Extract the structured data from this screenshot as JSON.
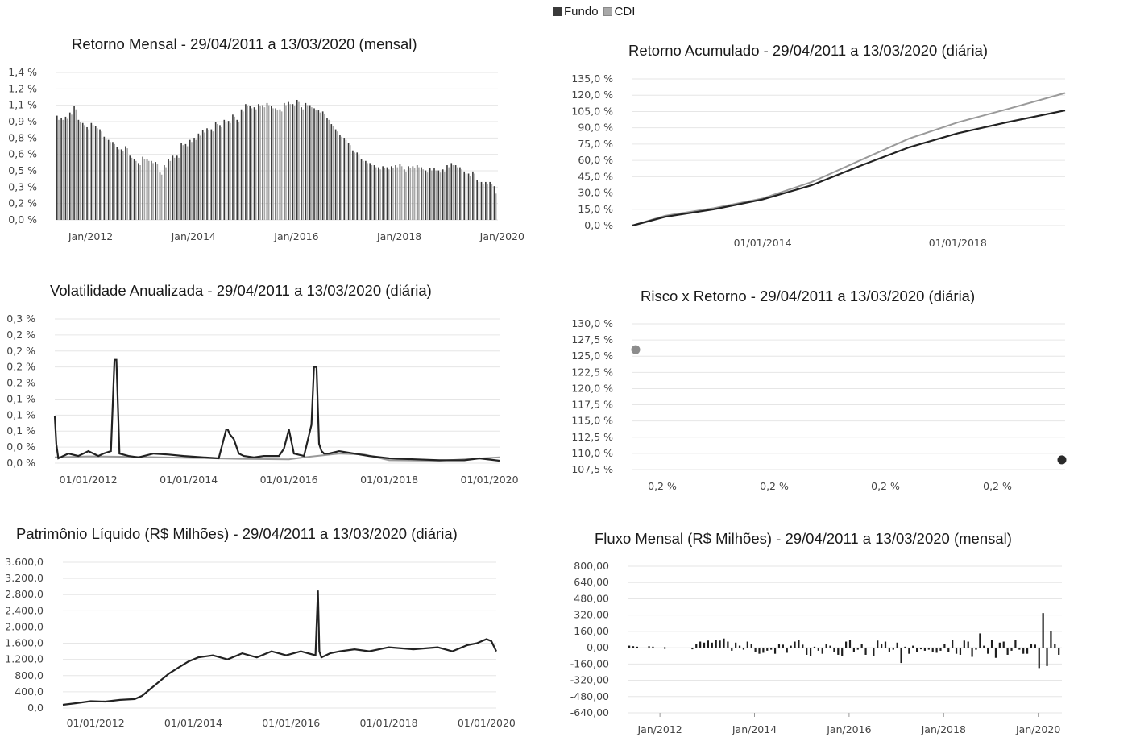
{
  "legend": {
    "fundo_label": "Fundo",
    "cdi_label": "CDI",
    "colors": {
      "fundo": "#3a3a3a",
      "cdi": "#a8a8a8"
    }
  },
  "chart_data": [
    {
      "id": "retorno-mensal",
      "type": "bar",
      "title": "Retorno Mensal - 29/04/2011 a 13/03/2020 (mensal)",
      "xlabel": "",
      "ylabel": "",
      "y_ticks": [
        "0,0 %",
        "0,2 %",
        "0,3 %",
        "0,5 %",
        "0,6 %",
        "0,8 %",
        "0,9 %",
        "1,1 %",
        "1,2 %",
        "1,4 %"
      ],
      "ylim": [
        0,
        1.4
      ],
      "x_ticks": [
        "Jan/2012",
        "Jan/2014",
        "Jan/2016",
        "Jan/2018",
        "Jan/2020"
      ],
      "x_tick_months": [
        8,
        32,
        56,
        80,
        104
      ],
      "series": [
        {
          "name": "Fundo",
          "color": "#3a3a3a",
          "values": [
            0.99,
            0.97,
            0.98,
            1.02,
            1.08,
            0.95,
            0.92,
            0.88,
            0.92,
            0.89,
            0.86,
            0.79,
            0.76,
            0.74,
            0.69,
            0.67,
            0.7,
            0.61,
            0.58,
            0.54,
            0.6,
            0.58,
            0.56,
            0.55,
            0.45,
            0.52,
            0.58,
            0.61,
            0.61,
            0.73,
            0.72,
            0.76,
            0.78,
            0.82,
            0.85,
            0.87,
            0.86,
            0.93,
            0.9,
            0.95,
            0.94,
            1.0,
            0.95,
            1.05,
            1.1,
            1.08,
            1.07,
            1.1,
            1.09,
            1.11,
            1.08,
            1.06,
            1.05,
            1.11,
            1.12,
            1.1,
            1.14,
            1.07,
            1.11,
            1.09,
            1.06,
            1.04,
            1.03,
            0.97,
            0.91,
            0.86,
            0.81,
            0.78,
            0.73,
            0.66,
            0.64,
            0.58,
            0.56,
            0.54,
            0.52,
            0.5,
            0.51,
            0.5,
            0.51,
            0.52,
            0.53,
            0.48,
            0.51,
            0.51,
            0.52,
            0.5,
            0.47,
            0.49,
            0.49,
            0.47,
            0.48,
            0.52,
            0.54,
            0.52,
            0.5,
            0.46,
            0.44,
            0.46,
            0.38,
            0.36,
            0.36,
            0.36,
            0.32
          ]
        },
        {
          "name": "CDI",
          "color": "#a8a8a8",
          "values": [
            0.95,
            0.95,
            0.96,
            1.0,
            1.05,
            0.93,
            0.9,
            0.86,
            0.9,
            0.87,
            0.84,
            0.77,
            0.74,
            0.72,
            0.67,
            0.65,
            0.68,
            0.59,
            0.56,
            0.52,
            0.58,
            0.56,
            0.54,
            0.53,
            0.43,
            0.5,
            0.56,
            0.59,
            0.59,
            0.71,
            0.7,
            0.74,
            0.76,
            0.8,
            0.83,
            0.85,
            0.84,
            0.91,
            0.88,
            0.93,
            0.92,
            0.98,
            0.93,
            1.03,
            1.08,
            1.06,
            1.05,
            1.08,
            1.07,
            1.09,
            1.06,
            1.04,
            1.03,
            1.09,
            1.1,
            1.08,
            1.12,
            1.05,
            1.09,
            1.07,
            1.04,
            1.02,
            1.01,
            0.95,
            0.89,
            0.84,
            0.79,
            0.76,
            0.71,
            0.64,
            0.62,
            0.56,
            0.54,
            0.52,
            0.5,
            0.48,
            0.49,
            0.48,
            0.49,
            0.5,
            0.51,
            0.46,
            0.49,
            0.49,
            0.5,
            0.48,
            0.45,
            0.47,
            0.47,
            0.45,
            0.46,
            0.5,
            0.52,
            0.5,
            0.48,
            0.44,
            0.42,
            0.44,
            0.36,
            0.34,
            0.34,
            0.34,
            0.25
          ]
        }
      ]
    },
    {
      "id": "retorno-acumulado",
      "type": "line",
      "title": "Retorno Acumulado - 29/04/2011 a 13/03/2020 (diária)",
      "xlabel": "",
      "ylabel": "",
      "y_ticks": [
        "0,0 %",
        "15,0 %",
        "30,0 %",
        "45,0 %",
        "60,0 %",
        "75,0 %",
        "90,0 %",
        "105,0 %",
        "120,0 %",
        "135,0 %"
      ],
      "ylim": [
        0,
        135
      ],
      "x_ticks": [
        "01/01/2014",
        "01/01/2018"
      ],
      "x_tick_years": [
        2014,
        2018
      ],
      "xlim": [
        2011.33,
        2020.2
      ],
      "series": [
        {
          "name": "Fundo",
          "color": "#222222",
          "x": [
            2011.33,
            2012,
            2013,
            2014,
            2015,
            2016,
            2017,
            2018,
            2019,
            2020.2
          ],
          "y": [
            0,
            8,
            15,
            24,
            37,
            55,
            72,
            85,
            95,
            106
          ]
        },
        {
          "name": "CDI",
          "color": "#9a9a9a",
          "x": [
            2011.33,
            2012,
            2013,
            2014,
            2015,
            2016,
            2017,
            2018,
            2019,
            2020.2
          ],
          "y": [
            0,
            9,
            16,
            25,
            40,
            60,
            80,
            95,
            107,
            122
          ]
        }
      ]
    },
    {
      "id": "volatilidade",
      "type": "line",
      "title": "Volatilidade Anualizada - 29/04/2011 a 13/03/2020 (diária)",
      "xlabel": "",
      "ylabel": "",
      "y_ticks": [
        "0,0 %",
        "0,0 %",
        "0,1 %",
        "0,1 %",
        "0,1 %",
        "0,2 %",
        "0,2 %",
        "0,2 %",
        "0,2 %",
        "0,3 %"
      ],
      "ylim": [
        0,
        0.3
      ],
      "x_ticks": [
        "01/01/2012",
        "01/01/2014",
        "01/01/2016",
        "01/01/2018",
        "01/01/2020"
      ],
      "x_tick_years": [
        2012,
        2014,
        2016,
        2018,
        2020
      ],
      "xlim": [
        2011.33,
        2020.2
      ],
      "series": [
        {
          "name": "Fundo",
          "color": "#222222",
          "x": [
            2011.33,
            2011.36,
            2011.4,
            2011.6,
            2011.8,
            2012.0,
            2012.1,
            2012.2,
            2012.3,
            2012.45,
            2012.52,
            2012.56,
            2012.62,
            2012.8,
            2013.0,
            2013.3,
            2013.6,
            2013.9,
            2014.3,
            2014.6,
            2014.75,
            2014.78,
            2014.82,
            2014.9,
            2015.0,
            2015.1,
            2015.3,
            2015.5,
            2015.8,
            2015.9,
            2016.0,
            2016.1,
            2016.3,
            2016.45,
            2016.5,
            2016.55,
            2016.6,
            2016.65,
            2016.7,
            2016.8,
            2017.0,
            2017.3,
            2017.6,
            2018.0,
            2018.5,
            2019.0,
            2019.5,
            2019.8,
            2020.2
          ],
          "y": [
            0.098,
            0.04,
            0.01,
            0.02,
            0.015,
            0.025,
            0.02,
            0.015,
            0.02,
            0.025,
            0.215,
            0.215,
            0.02,
            0.015,
            0.012,
            0.02,
            0.018,
            0.015,
            0.012,
            0.01,
            0.07,
            0.07,
            0.06,
            0.05,
            0.02,
            0.015,
            0.012,
            0.015,
            0.015,
            0.03,
            0.07,
            0.02,
            0.015,
            0.08,
            0.2,
            0.2,
            0.04,
            0.025,
            0.02,
            0.02,
            0.025,
            0.02,
            0.015,
            0.01,
            0.008,
            0.006,
            0.006,
            0.01,
            0.005
          ]
        },
        {
          "name": "CDI",
          "color": "#9a9a9a",
          "x": [
            2011.33,
            2012,
            2013,
            2014,
            2015,
            2016,
            2016.3,
            2017,
            2017.5,
            2018,
            2019,
            2020.2
          ],
          "y": [
            0.012,
            0.014,
            0.013,
            0.011,
            0.009,
            0.008,
            0.012,
            0.02,
            0.018,
            0.006,
            0.005,
            0.012
          ]
        }
      ]
    },
    {
      "id": "risco-retorno",
      "type": "scatter",
      "title": "Risco x Retorno - 29/04/2011 a 13/03/2020 (diária)",
      "xlabel": "",
      "ylabel": "",
      "y_ticks": [
        "107,5 %",
        "110,0 %",
        "112,5 %",
        "115,0 %",
        "117,5 %",
        "120,0 %",
        "122,5 %",
        "125,0 %",
        "127,5 %",
        "130,0 %"
      ],
      "ylim": [
        107.5,
        130
      ],
      "x_ticks": [
        "0,2 %",
        "0,2 %",
        "0,2 %",
        "0,2 %"
      ],
      "points": [
        {
          "name": "CDI",
          "color": "#8c8c8c",
          "x": 0.0,
          "y": 126.0
        },
        {
          "name": "Fundo",
          "color": "#2a2a2a",
          "x": 1.0,
          "y": 109.0
        }
      ]
    },
    {
      "id": "patrimonio-liquido",
      "type": "line",
      "title": "Patrimônio Líquido (R$ Milhões) - 29/04/2011 a 13/03/2020 (diária)",
      "xlabel": "",
      "ylabel": "",
      "y_ticks": [
        "0,0",
        "400,0",
        "800,0",
        "1.200,0",
        "1.600,0",
        "2.000,0",
        "2.400,0",
        "2.800,0",
        "3.200,0",
        "3.600,0"
      ],
      "ylim": [
        0,
        3600
      ],
      "x_ticks": [
        "01/01/2012",
        "01/01/2014",
        "01/01/2016",
        "01/01/2018",
        "01/01/2020"
      ],
      "x_tick_years": [
        2012,
        2014,
        2016,
        2018,
        2020
      ],
      "xlim": [
        2011.33,
        2020.2
      ],
      "series": [
        {
          "name": "Fundo",
          "color": "#222222",
          "x": [
            2011.33,
            2011.6,
            2011.9,
            2012.2,
            2012.5,
            2012.8,
            2012.95,
            2013.1,
            2013.3,
            2013.5,
            2013.7,
            2013.9,
            2014.1,
            2014.4,
            2014.7,
            2015.0,
            2015.3,
            2015.6,
            2015.9,
            2016.2,
            2016.5,
            2016.55,
            2016.58,
            2016.62,
            2016.8,
            2017.0,
            2017.3,
            2017.6,
            2018.0,
            2018.5,
            2019.0,
            2019.3,
            2019.6,
            2019.8,
            2020.0,
            2020.1,
            2020.2
          ],
          "y": [
            80,
            120,
            170,
            160,
            200,
            220,
            300,
            450,
            650,
            850,
            1000,
            1150,
            1250,
            1300,
            1200,
            1350,
            1250,
            1400,
            1300,
            1400,
            1300,
            2900,
            1400,
            1250,
            1350,
            1400,
            1450,
            1400,
            1500,
            1450,
            1500,
            1400,
            1550,
            1600,
            1700,
            1650,
            1400
          ]
        }
      ]
    },
    {
      "id": "fluxo-mensal",
      "type": "bar",
      "title": "Fluxo Mensal (R$ Milhões) - 29/04/2011 a 13/03/2020 (mensal)",
      "xlabel": "",
      "ylabel": "",
      "y_ticks": [
        "-640,00",
        "-480,00",
        "-320,00",
        "-160,00",
        "0,00",
        "160,00",
        "320,00",
        "480,00",
        "640,00",
        "800,00"
      ],
      "ylim": [
        -640,
        800
      ],
      "x_ticks": [
        "Jan/2012",
        "Jan/2014",
        "Jan/2016",
        "Jan/2018",
        "Jan/2020"
      ],
      "x_tick_months": [
        8,
        32,
        56,
        80,
        104
      ],
      "series": [
        {
          "name": "Fundo",
          "color": "#1e1e1e",
          "values": [
            20,
            15,
            10,
            0,
            0,
            15,
            10,
            0,
            0,
            5,
            0,
            0,
            0,
            0,
            0,
            0,
            -15,
            40,
            60,
            50,
            70,
            50,
            80,
            70,
            90,
            60,
            -30,
            50,
            20,
            -20,
            60,
            40,
            -40,
            -60,
            -50,
            -30,
            -20,
            -60,
            40,
            30,
            -50,
            20,
            60,
            80,
            30,
            -70,
            -80,
            10,
            -30,
            -60,
            40,
            20,
            -40,
            -70,
            -80,
            60,
            80,
            -40,
            -20,
            40,
            -70,
            0,
            -80,
            70,
            40,
            60,
            -40,
            -20,
            50,
            -150,
            10,
            -60,
            20,
            -40,
            -10,
            -30,
            -20,
            -40,
            -50,
            -30,
            40,
            -40,
            80,
            -60,
            -70,
            70,
            60,
            -90,
            -20,
            140,
            20,
            -60,
            80,
            -100,
            50,
            60,
            -70,
            -30,
            80,
            -20,
            -60,
            -60,
            40,
            30,
            -200,
            340,
            -180,
            160,
            40,
            -70
          ]
        }
      ]
    }
  ]
}
